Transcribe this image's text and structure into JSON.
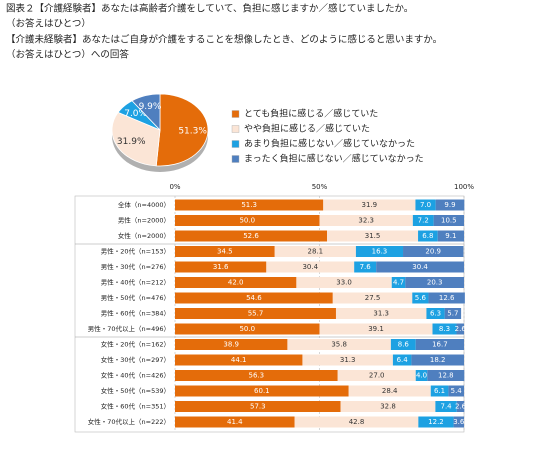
{
  "header": {
    "line1": "図表２【介護経験者】あなたは高齢者介護をしていて、負担に感じますか／感じていましたか。",
    "line2": "（お答えはひとつ）",
    "line3": "【介護未経験者】あなたはご自身が介護をすることを想像したとき、どのように感じると思いますか。",
    "line4": "（お答えはひとつ）への回答"
  },
  "chart_data": [
    {
      "type": "pie",
      "categories": [
        "とても負担に感じる／感じていた",
        "やや負担に感じる／感じていた",
        "あまり負担に感じない／感じていなかった",
        "まったく負担に感じない／感じていなかった"
      ],
      "values": [
        51.3,
        31.9,
        7.0,
        9.9
      ],
      "value_labels": [
        "51.3%",
        "31.9%",
        "7.0%",
        "9.9%"
      ],
      "colors": [
        "#e46c0a",
        "#fbe5d6",
        "#1da1e2",
        "#4f7fbf"
      ],
      "legend": "right"
    },
    {
      "type": "stacked-barh",
      "categories": [
        "全体（n=4000）",
        "男性（n=2000）",
        "女性（n=2000）",
        "男性・20代（n=153）",
        "男性・30代（n=276）",
        "男性・40代（n=212）",
        "男性・50代（n=476）",
        "男性・60代（n=384）",
        "男性・70代以上（n=496）",
        "女性・20代（n=162）",
        "女性・30代（n=297）",
        "女性・40代（n=426）",
        "女性・50代（n=539）",
        "女性・60代（n=351）",
        "女性・70代以上（n=222）"
      ],
      "series": [
        {
          "color": "#e46c0a",
          "values": [
            51.3,
            50.0,
            52.6,
            34.5,
            31.6,
            42.0,
            54.6,
            55.7,
            50.0,
            38.9,
            44.1,
            56.3,
            60.1,
            57.3,
            41.4
          ],
          "value_labels": [
            "51.3",
            "50.0",
            "52.6",
            "34.5",
            "31.6",
            "42.0",
            "54.6",
            "55.7",
            "50.0",
            "38.9",
            "44.1",
            "56.3",
            "60.1",
            "57.3",
            "41.4"
          ]
        },
        {
          "color": "#fbe5d6",
          "values": [
            31.9,
            32.3,
            31.5,
            28.1,
            30.4,
            33.0,
            27.5,
            31.3,
            39.1,
            35.8,
            31.3,
            27.0,
            28.4,
            32.8,
            42.8
          ],
          "value_labels": [
            "31.9",
            "32.3",
            "31.5",
            "28.1",
            "30.4",
            "33.0",
            "27.5",
            "31.3",
            "39.1",
            "35.8",
            "31.3",
            "27.0",
            "28.4",
            "32.8",
            "42.8"
          ]
        },
        {
          "color": "#1da1e2",
          "values": [
            7.0,
            7.2,
            6.8,
            16.3,
            7.6,
            4.7,
            5.6,
            6.3,
            8.3,
            8.6,
            6.4,
            4.0,
            6.1,
            7.4,
            12.2
          ],
          "value_labels": [
            "7.0",
            "7.2",
            "6.8",
            "16.3",
            "7.6",
            "4.7",
            "5.6",
            "6.3",
            "8.3",
            "8.6",
            "6.4",
            "4.0",
            "6.1",
            "7.4",
            "12.2"
          ]
        },
        {
          "color": "#4f7fbf",
          "values": [
            9.9,
            10.5,
            9.1,
            20.9,
            30.4,
            20.3,
            12.6,
            5.7,
            2.6,
            16.7,
            18.2,
            12.8,
            5.4,
            2.6,
            3.6
          ],
          "value_labels": [
            "9.9",
            "10.5",
            "9.1",
            "20.9",
            "30.4",
            "20.3",
            "12.6",
            "5.7",
            "2.6",
            "16.7",
            "18.2",
            "12.8",
            "5.4",
            "2.6",
            "3.6"
          ]
        }
      ],
      "xlim": [
        0,
        100
      ],
      "xticks": [
        {
          "value": 0,
          "label": "0%"
        },
        {
          "value": 50,
          "label": "50%"
        },
        {
          "value": 100,
          "label": "100%"
        }
      ],
      "grid": true
    }
  ]
}
